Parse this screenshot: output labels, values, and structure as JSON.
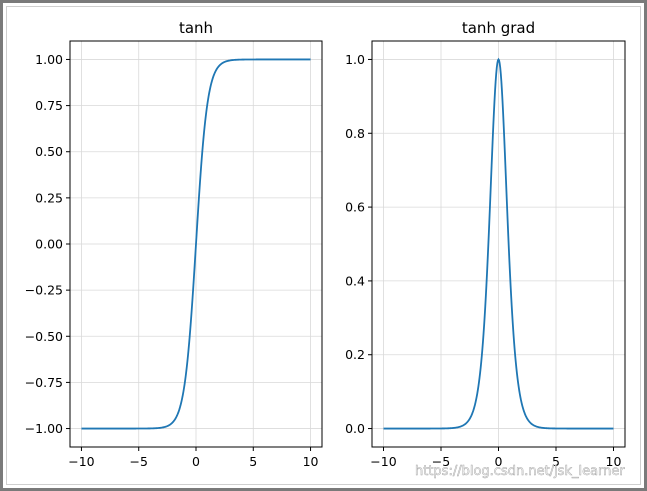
{
  "colors": {
    "line": "#1f77b4",
    "grid": "#d9d9d9",
    "frame": "#7a7a7a"
  },
  "watermark": "https://blog.csdn.net/jsk_learner",
  "chart_data": [
    {
      "type": "line",
      "title": "tanh",
      "xlabel": "",
      "ylabel": "",
      "function": "tanh",
      "xlim": [
        -11,
        11
      ],
      "ylim": [
        -1.1,
        1.1
      ],
      "xticks": [
        -10,
        -5,
        0,
        5,
        10
      ],
      "xtick_labels": [
        "−10",
        "−5",
        "0",
        "5",
        "10"
      ],
      "yticks": [
        -1.0,
        -0.75,
        -0.5,
        -0.25,
        0.0,
        0.25,
        0.5,
        0.75,
        1.0
      ],
      "ytick_labels": [
        "−1.00",
        "−0.75",
        "−0.50",
        "−0.25",
        "0.00",
        "0.25",
        "0.50",
        "0.75",
        "1.00"
      ],
      "grid": true,
      "series": [
        {
          "x": [
            -10,
            -5,
            -4,
            -3,
            -2.5,
            -2,
            -1.5,
            -1,
            -0.75,
            -0.5,
            -0.25,
            0,
            0.25,
            0.5,
            0.75,
            1,
            1.5,
            2,
            2.5,
            3,
            4,
            5,
            10
          ],
          "y": [
            -1.0,
            -0.9999,
            -0.9993,
            -0.9951,
            -0.9866,
            -0.964,
            -0.9051,
            -0.7616,
            -0.6351,
            -0.4621,
            -0.2449,
            0.0,
            0.2449,
            0.4621,
            0.6351,
            0.7616,
            0.9051,
            0.964,
            0.9866,
            0.9951,
            0.9993,
            0.9999,
            1.0
          ]
        }
      ]
    },
    {
      "type": "line",
      "title": "tanh grad",
      "xlabel": "",
      "ylabel": "",
      "function": "tanh_grad",
      "xlim": [
        -11,
        11
      ],
      "ylim": [
        -0.05,
        1.05
      ],
      "xticks": [
        -10,
        -5,
        0,
        5,
        10
      ],
      "xtick_labels": [
        "−10",
        "−5",
        "0",
        "5",
        "10"
      ],
      "yticks": [
        0.0,
        0.2,
        0.4,
        0.6,
        0.8,
        1.0
      ],
      "ytick_labels": [
        "0.0",
        "0.2",
        "0.4",
        "0.6",
        "0.8",
        "1.0"
      ],
      "grid": true,
      "series": [
        {
          "x": [
            -10,
            -5,
            -4,
            -3,
            -2.5,
            -2,
            -1.5,
            -1,
            -0.75,
            -0.5,
            -0.25,
            0,
            0.25,
            0.5,
            0.75,
            1,
            1.5,
            2,
            2.5,
            3,
            4,
            5,
            10
          ],
          "y": [
            0.0,
            0.0002,
            0.0013,
            0.0099,
            0.0266,
            0.0707,
            0.1807,
            0.42,
            0.5966,
            0.7864,
            0.94,
            1.0,
            0.94,
            0.7864,
            0.5966,
            0.42,
            0.1807,
            0.0707,
            0.0266,
            0.0099,
            0.0013,
            0.0002,
            0.0
          ]
        }
      ]
    }
  ]
}
